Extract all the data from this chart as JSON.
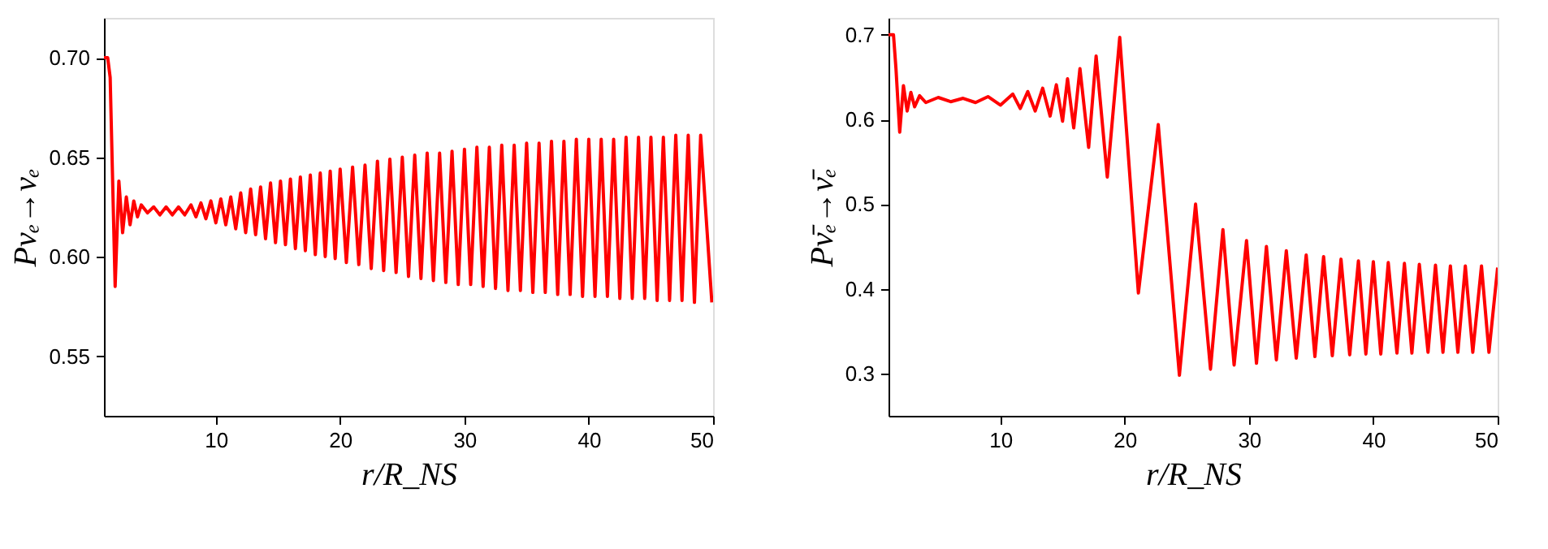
{
  "chart_data": [
    {
      "type": "line",
      "xlabel": "r/R_NS",
      "ylabel": "Pνₑ→νₑ",
      "xlim": [
        1,
        50
      ],
      "ylim": [
        0.52,
        0.72
      ],
      "xticks": [
        10,
        20,
        30,
        40,
        50
      ],
      "yticks": [
        0.55,
        {
          "value": 0.6,
          "label": "0.60"
        },
        0.65,
        {
          "value": 0.7,
          "label": "0.70"
        }
      ],
      "grid": false,
      "line_style": "solid",
      "marker": "none",
      "series": [
        {
          "color": "#ff0000",
          "x": [
            1.0,
            1.3,
            1.5,
            1.9,
            2.2,
            2.5,
            2.8,
            3.1,
            3.4,
            3.7,
            4.0,
            4.5,
            5.0,
            5.5,
            6.0,
            6.5,
            7.0,
            7.5,
            8.0,
            8.4,
            8.8,
            9.2,
            9.6,
            10.0,
            10.4,
            10.8,
            11.2,
            11.6,
            12.0,
            12.4,
            12.8,
            13.2,
            13.6,
            14.0,
            14.4,
            14.8,
            15.2,
            15.6,
            16.0,
            16.4,
            16.8,
            17.2,
            17.6,
            18.0,
            18.4,
            18.8,
            19.2,
            19.6,
            20,
            20.5,
            21,
            21.5,
            22,
            22.5,
            23,
            23.5,
            24,
            24.5,
            25,
            25.5,
            26,
            26.5,
            27,
            27.5,
            28,
            28.5,
            29,
            29.5,
            30,
            30.5,
            31,
            31.5,
            32,
            32.5,
            33,
            33.5,
            34,
            34.5,
            35,
            35.5,
            36,
            36.5,
            37,
            37.5,
            38,
            38.5,
            39,
            39.5,
            40,
            40.5,
            41,
            41.5,
            42,
            42.5,
            43,
            43.5,
            44,
            44.5,
            45,
            45.5,
            46,
            46.5,
            47,
            47.5,
            48,
            48.5,
            49,
            49.9
          ],
          "values": [
            0.7,
            0.7,
            0.69,
            0.585,
            0.638,
            0.612,
            0.63,
            0.616,
            0.628,
            0.62,
            0.626,
            0.622,
            0.625,
            0.621,
            0.625,
            0.621,
            0.625,
            0.621,
            0.626,
            0.62,
            0.627,
            0.619,
            0.628,
            0.617,
            0.629,
            0.616,
            0.63,
            0.614,
            0.632,
            0.612,
            0.634,
            0.611,
            0.635,
            0.609,
            0.637,
            0.607,
            0.638,
            0.606,
            0.639,
            0.604,
            0.64,
            0.603,
            0.641,
            0.601,
            0.642,
            0.6,
            0.643,
            0.599,
            0.644,
            0.597,
            0.645,
            0.596,
            0.646,
            0.594,
            0.648,
            0.593,
            0.649,
            0.592,
            0.65,
            0.59,
            0.651,
            0.589,
            0.652,
            0.588,
            0.652,
            0.587,
            0.653,
            0.586,
            0.654,
            0.586,
            0.655,
            0.585,
            0.655,
            0.584,
            0.656,
            0.583,
            0.656,
            0.583,
            0.657,
            0.582,
            0.657,
            0.582,
            0.658,
            0.581,
            0.658,
            0.581,
            0.659,
            0.58,
            0.659,
            0.58,
            0.659,
            0.58,
            0.659,
            0.579,
            0.66,
            0.579,
            0.66,
            0.579,
            0.66,
            0.578,
            0.66,
            0.578,
            0.661,
            0.578,
            0.661,
            0.577,
            0.661,
            0.577
          ]
        }
      ]
    },
    {
      "type": "line",
      "xlabel": "r/R_NS",
      "ylabel": "Pν̄ₑ→ν̄ₑ",
      "xlim": [
        1,
        50
      ],
      "ylim": [
        0.25,
        0.72
      ],
      "xticks": [
        10,
        20,
        30,
        40,
        50
      ],
      "yticks": [
        0.3,
        0.4,
        0.5,
        0.6,
        0.7
      ],
      "grid": false,
      "line_style": "solid",
      "marker": "none",
      "series": [
        {
          "color": "#ff0000",
          "x": [
            1.0,
            1.4,
            1.6,
            1.9,
            2.2,
            2.5,
            2.8,
            3.1,
            3.5,
            4,
            5,
            6,
            7,
            8,
            9,
            10,
            11,
            11.6,
            12.2,
            12.8,
            13.4,
            14,
            14.5,
            15,
            15.4,
            15.9,
            16.4,
            17.1,
            17.7,
            18.6,
            19.6,
            21.1,
            22.7,
            24.4,
            25.7,
            26.9,
            27.9,
            28.8,
            29.8,
            30.6,
            31.4,
            32.2,
            33.0,
            33.8,
            34.6,
            35.3,
            36.0,
            36.7,
            37.4,
            38.1,
            38.8,
            39.4,
            40.0,
            40.6,
            41.2,
            41.9,
            42.5,
            43.1,
            43.7,
            44.4,
            45.0,
            45.6,
            46.2,
            46.8,
            47.4,
            48.0,
            48.7,
            49.3,
            50.0
          ],
          "values": [
            0.7,
            0.7,
            0.66,
            0.585,
            0.64,
            0.61,
            0.632,
            0.615,
            0.628,
            0.62,
            0.626,
            0.621,
            0.625,
            0.62,
            0.627,
            0.617,
            0.63,
            0.613,
            0.633,
            0.61,
            0.637,
            0.604,
            0.641,
            0.598,
            0.648,
            0.59,
            0.66,
            0.567,
            0.675,
            0.532,
            0.697,
            0.395,
            0.594,
            0.298,
            0.5,
            0.305,
            0.47,
            0.31,
            0.457,
            0.312,
            0.45,
            0.316,
            0.445,
            0.318,
            0.44,
            0.32,
            0.438,
            0.321,
            0.435,
            0.322,
            0.433,
            0.323,
            0.432,
            0.323,
            0.431,
            0.324,
            0.43,
            0.324,
            0.429,
            0.325,
            0.428,
            0.325,
            0.427,
            0.325,
            0.427,
            0.325,
            0.427,
            0.325,
            0.425
          ]
        }
      ]
    }
  ]
}
